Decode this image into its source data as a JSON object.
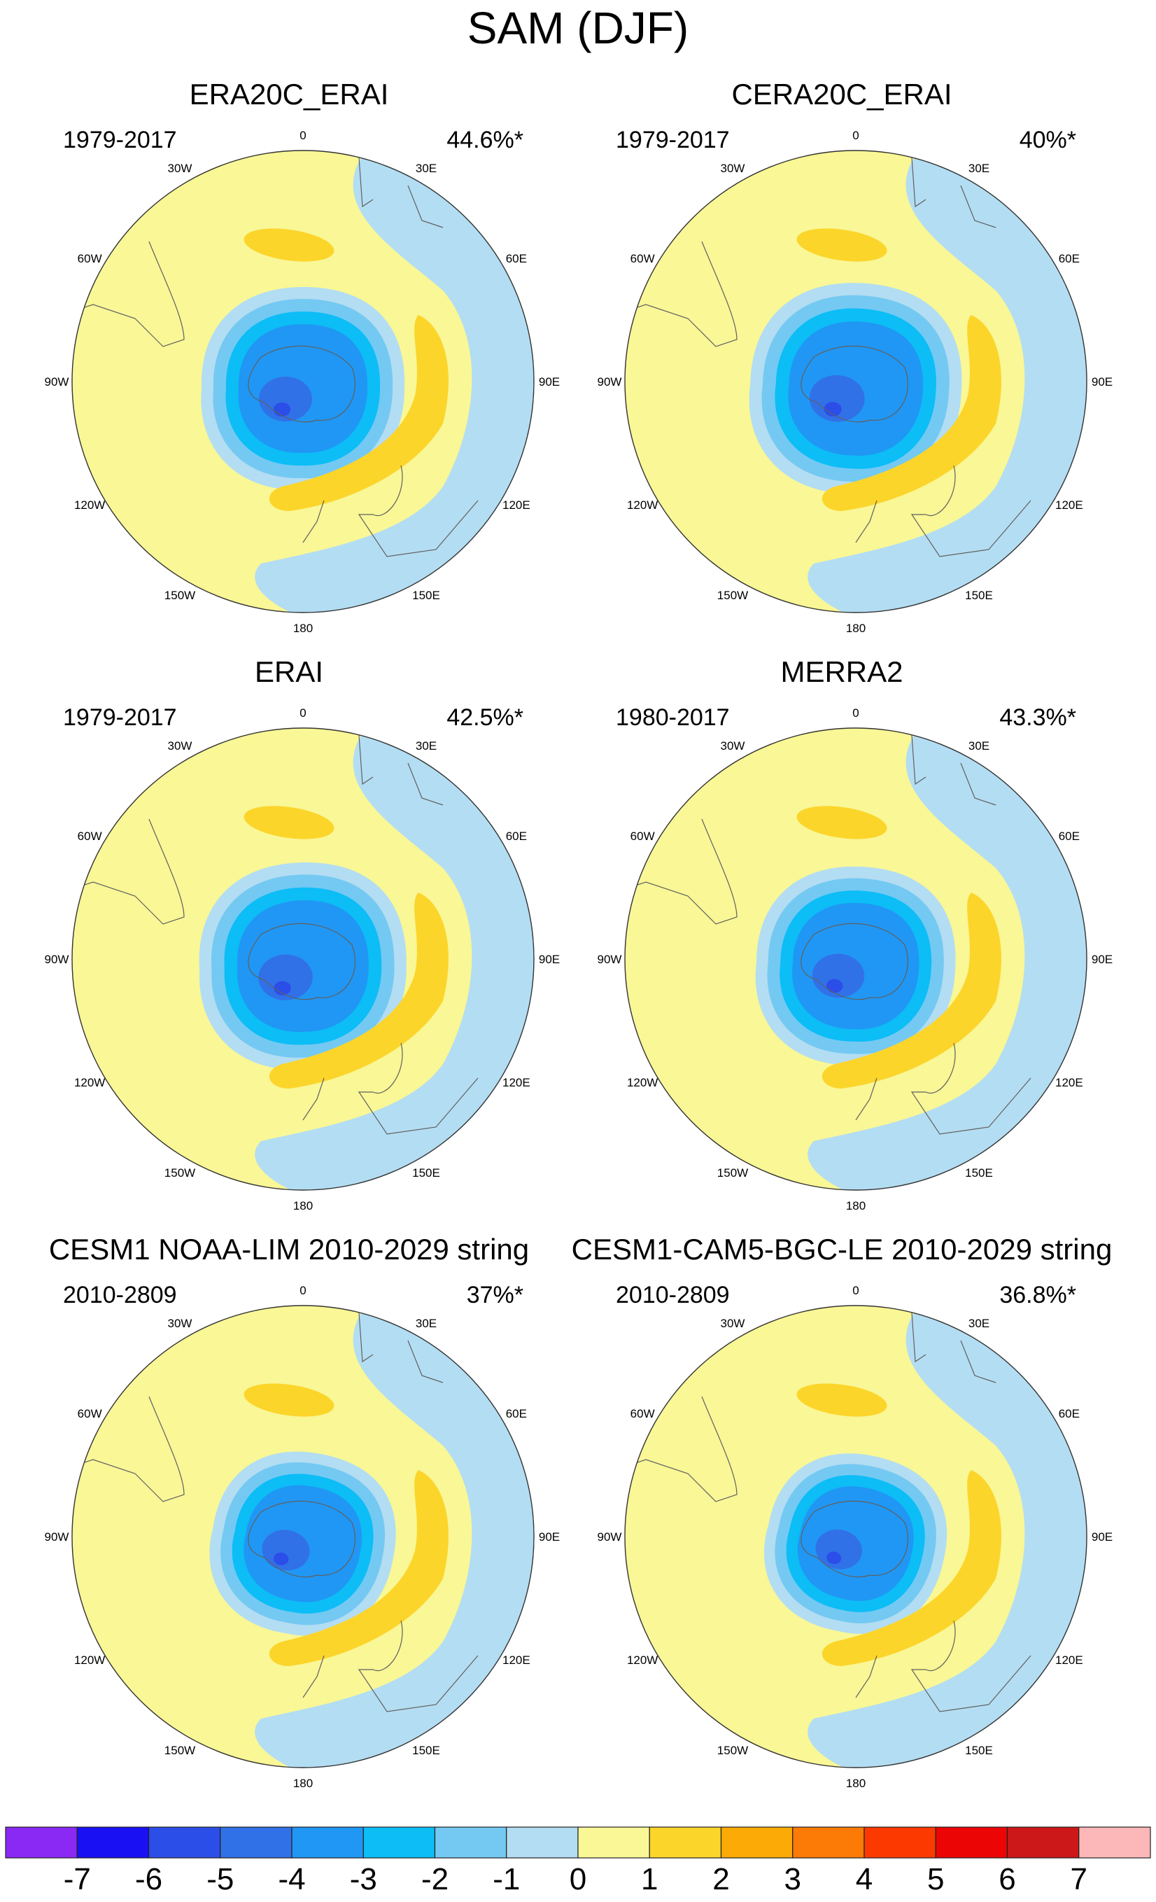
{
  "figure_title": "SAM (DJF)",
  "colors": {
    "c_n7": "#8a28f4",
    "c_n6": "#1a10f4",
    "c_n5": "#2b4de8",
    "c_n4": "#3171e8",
    "c_n3": "#2097f4",
    "c_n2": "#0cbdf6",
    "c_n1": "#74c9f2",
    "c_n0": "#b3ddf2",
    "c_p0": "#f9f796",
    "c_p1": "#fcd52b",
    "c_p2": "#fcaa05",
    "c_p3": "#fc7a06",
    "c_p4": "#fc3a00",
    "c_p5": "#ec0505",
    "c_p6": "#cc1818",
    "c_p7": "#fcb8b8",
    "coast": "#606060"
  },
  "longitude_labels": [
    "0",
    "30E",
    "60E",
    "90E",
    "120E",
    "150E",
    "180",
    "150W",
    "120W",
    "90W",
    "60W",
    "30W"
  ],
  "panels": [
    {
      "title": "ERA20C_ERAI",
      "period": "1979-2017",
      "variance": "44.6%*",
      "scale": 1.0,
      "rot": 0
    },
    {
      "title": "CERA20C_ERAI",
      "period": "1979-2017",
      "variance": "40%*",
      "scale": 1.04,
      "rot": 3
    },
    {
      "title": "ERAI",
      "period": "1979-2017",
      "variance": "42.5%*",
      "scale": 1.02,
      "rot": -2
    },
    {
      "title": "MERRA2",
      "period": "1980-2017",
      "variance": "43.3%*",
      "scale": 0.98,
      "rot": 2
    },
    {
      "title": "CESM1 NOAA-LIM 2010-2029 string",
      "period": "2010-2809",
      "variance": "37%*",
      "scale": 0.9,
      "rot": 10
    },
    {
      "title": "CESM1-CAM5-BGC-LE 2010-2029 string",
      "period": "2010-2809",
      "variance": "36.8%*",
      "scale": 0.88,
      "rot": 12
    }
  ],
  "colorbar": {
    "labels": [
      "-7",
      "-6",
      "-5",
      "-4",
      "-3",
      "-2",
      "-1",
      "0",
      "1",
      "2",
      "3",
      "4",
      "5",
      "6",
      "7"
    ],
    "colors": [
      "#8a28f4",
      "#1a10f4",
      "#2b4de8",
      "#3171e8",
      "#2097f4",
      "#0cbdf6",
      "#74c9f2",
      "#b3ddf2",
      "#f9f796",
      "#fcd52b",
      "#fcaa05",
      "#fc7a06",
      "#fc3a00",
      "#ec0505",
      "#cc1818",
      "#fcb8b8"
    ]
  }
}
